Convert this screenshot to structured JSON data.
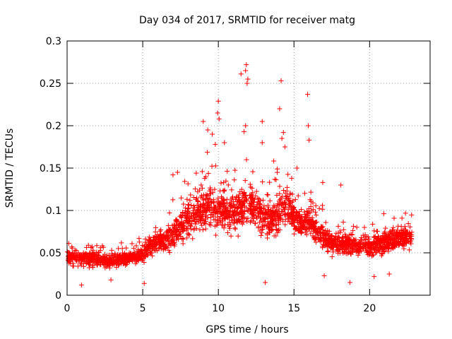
{
  "chart_data": {
    "type": "scatter",
    "title": "Day 034 of 2017, SRMTID for receiver matg",
    "xlabel": "GPS time / hours",
    "ylabel": "SRMTID / TECUs",
    "xlim": [
      0,
      24
    ],
    "ylim": [
      0,
      0.3
    ],
    "x_ticks": [
      0,
      5,
      10,
      15,
      20
    ],
    "y_ticks": [
      0,
      0.05,
      0.1,
      0.15,
      0.2,
      0.25,
      0.3
    ],
    "x_tick_labels": [
      "0",
      "5",
      "10",
      "15",
      "20"
    ],
    "y_tick_labels": [
      "0",
      "0.05",
      "0.1",
      "0.15",
      "0.2",
      "0.25",
      "0.3"
    ],
    "grid": true,
    "marker": "+",
    "series_color": "#ff0000",
    "profile": {
      "hours": [
        0,
        1,
        2,
        3,
        4,
        5,
        5.5,
        6,
        6.5,
        7,
        7.5,
        8,
        8.5,
        9,
        9.5,
        10,
        10.5,
        11,
        11.5,
        12,
        12.5,
        13,
        13.5,
        14,
        14.5,
        15,
        15.5,
        16,
        16.5,
        17,
        17.5,
        18,
        19,
        20,
        21,
        22,
        22.8
      ],
      "median_tecu": [
        0.045,
        0.043,
        0.042,
        0.041,
        0.043,
        0.047,
        0.06,
        0.062,
        0.063,
        0.072,
        0.08,
        0.088,
        0.092,
        0.1,
        0.105,
        0.102,
        0.098,
        0.095,
        0.105,
        0.108,
        0.1,
        0.095,
        0.088,
        0.098,
        0.11,
        0.092,
        0.085,
        0.088,
        0.075,
        0.068,
        0.062,
        0.06,
        0.06,
        0.058,
        0.062,
        0.068,
        0.07
      ],
      "spread_tecu": [
        0.018,
        0.016,
        0.014,
        0.013,
        0.014,
        0.016,
        0.02,
        0.022,
        0.026,
        0.03,
        0.033,
        0.036,
        0.038,
        0.045,
        0.042,
        0.04,
        0.036,
        0.04,
        0.045,
        0.045,
        0.04,
        0.038,
        0.034,
        0.045,
        0.04,
        0.036,
        0.032,
        0.03,
        0.026,
        0.024,
        0.022,
        0.02,
        0.02,
        0.02,
        0.022,
        0.022,
        0.022
      ]
    },
    "n_points": 2600,
    "peaks": [
      {
        "x": 11.85,
        "y": 0.272
      },
      {
        "x": 11.8,
        "y": 0.265
      },
      {
        "x": 11.5,
        "y": 0.261
      },
      {
        "x": 11.95,
        "y": 0.255
      },
      {
        "x": 14.15,
        "y": 0.253
      },
      {
        "x": 11.9,
        "y": 0.25
      },
      {
        "x": 15.9,
        "y": 0.237
      },
      {
        "x": 10.0,
        "y": 0.229
      },
      {
        "x": 14.05,
        "y": 0.22
      },
      {
        "x": 9.95,
        "y": 0.215
      },
      {
        "x": 10.05,
        "y": 0.208
      },
      {
        "x": 9.0,
        "y": 0.205
      },
      {
        "x": 15.95,
        "y": 0.2
      },
      {
        "x": 12.9,
        "y": 0.205
      },
      {
        "x": 11.8,
        "y": 0.2
      },
      {
        "x": 9.3,
        "y": 0.195
      },
      {
        "x": 14.3,
        "y": 0.192
      },
      {
        "x": 14.2,
        "y": 0.185
      },
      {
        "x": 16.0,
        "y": 0.183
      },
      {
        "x": 9.6,
        "y": 0.19
      },
      {
        "x": 11.7,
        "y": 0.193
      },
      {
        "x": 9.8,
        "y": 0.178
      },
      {
        "x": 10.4,
        "y": 0.18
      },
      {
        "x": 14.4,
        "y": 0.175
      },
      {
        "x": 12.9,
        "y": 0.18
      },
      {
        "x": 15.2,
        "y": 0.15
      },
      {
        "x": 16.9,
        "y": 0.133
      },
      {
        "x": 18.1,
        "y": 0.13
      },
      {
        "x": 7.0,
        "y": 0.142
      },
      {
        "x": 7.3,
        "y": 0.145
      }
    ],
    "lows": [
      {
        "x": 0.95,
        "y": 0.012
      },
      {
        "x": 5.1,
        "y": 0.014
      },
      {
        "x": 13.1,
        "y": 0.015
      },
      {
        "x": 18.7,
        "y": 0.015
      },
      {
        "x": 20.3,
        "y": 0.022
      },
      {
        "x": 17.0,
        "y": 0.023
      },
      {
        "x": 2.9,
        "y": 0.018
      },
      {
        "x": 21.3,
        "y": 0.025
      }
    ]
  }
}
